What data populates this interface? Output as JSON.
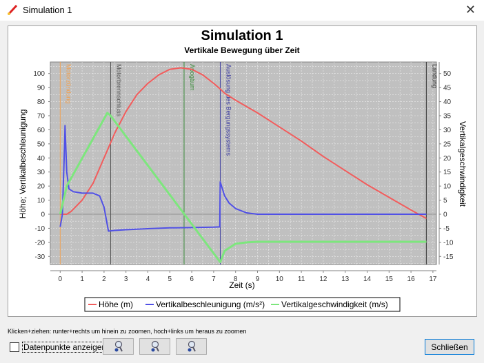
{
  "window": {
    "title": "Simulation 1",
    "close_icon": "close-icon"
  },
  "footer": {
    "hint": "Klicken+ziehen: runter+rechts um hinein zu zoomen, hoch+links um heraus zu zoomen",
    "checkbox_label": "Datenpunkte anzeigen",
    "checkbox_checked": false,
    "zoom_buttons": [
      "zoom-in-icon",
      "zoom-out-icon",
      "zoom-reset-icon"
    ],
    "close_label": "Schließen"
  },
  "chart_data": {
    "type": "line",
    "title": "Simulation 1",
    "subtitle": "Vertikale Bewegung über Zeit",
    "xlabel": "Zeit (s)",
    "ylabel": "Höhe; Vertikalbeschleunigung",
    "y2label": "Vertikalgeschwindigkeit",
    "xlim": [
      -0.5,
      17.5
    ],
    "ylim": [
      -36,
      108
    ],
    "y2lim": [
      -18,
      54
    ],
    "xticks": [
      0,
      1,
      2,
      3,
      4,
      5,
      6,
      7,
      8,
      9,
      10,
      11,
      12,
      13,
      14,
      15,
      16,
      17
    ],
    "yticks": [
      -30,
      -20,
      -10,
      0,
      10,
      20,
      30,
      40,
      50,
      60,
      70,
      80,
      90,
      100
    ],
    "y2ticks": [
      -15,
      -10,
      -5,
      0,
      5,
      10,
      15,
      20,
      25,
      30,
      35,
      40,
      45,
      50
    ],
    "grid": true,
    "legend_position": "bottom",
    "series": [
      {
        "name": "Höhe (m)",
        "color": "#f25c5c",
        "axis": "left",
        "x": [
          0,
          0.3,
          0.5,
          1,
          1.5,
          2,
          2.5,
          3,
          3.5,
          4,
          4.5,
          5,
          5.5,
          6,
          6.5,
          7,
          7.3,
          7.5,
          8,
          9,
          10,
          11,
          12,
          13,
          14,
          15,
          16,
          16.7
        ],
        "y": [
          0,
          0,
          2,
          10,
          22,
          40,
          58,
          73,
          85,
          93,
          99,
          103,
          104,
          103,
          99,
          93,
          89,
          86,
          81,
          72,
          62,
          52,
          41,
          31,
          21,
          12,
          3,
          -3
        ]
      },
      {
        "name": "Vertikalbeschleunigung (m/s²)",
        "color": "#5050e6",
        "axis": "left",
        "x": [
          0,
          0.1,
          0.2,
          0.22,
          0.3,
          0.4,
          0.6,
          1,
          1.5,
          1.8,
          2,
          2.2,
          2.5,
          3,
          4,
          5,
          6,
          7,
          7.28,
          7.3,
          7.5,
          7.7,
          8,
          8.5,
          9,
          16.7
        ],
        "y": [
          -9,
          0,
          50,
          63,
          30,
          18,
          16,
          15,
          15,
          13,
          5,
          -12,
          -11.5,
          -11,
          -10.3,
          -9.7,
          -9.5,
          -9.2,
          -9,
          23,
          13,
          8,
          4,
          1,
          0,
          0
        ]
      },
      {
        "name": "Vertikalgeschwindigkeit (m/s)",
        "color": "#7de67d",
        "axis": "right",
        "x": [
          0,
          0.3,
          2.15,
          2.3,
          7.3,
          7.5,
          8,
          8.5,
          9,
          16.7
        ],
        "y": [
          0,
          10,
          36,
          35,
          -17,
          -13,
          -10.5,
          -10,
          -9.8,
          -9.8
        ]
      }
    ],
    "events": [
      {
        "label": "Motorzündung",
        "t": 0,
        "color": "#f0a050"
      },
      {
        "label": "Motorbrennschluss",
        "t": 2.3,
        "color": "#555555"
      },
      {
        "label": "Apogäum",
        "t": 5.65,
        "color": "#3a8a3a"
      },
      {
        "label": "Auslösung des Bergungssystems",
        "t": 7.3,
        "color": "#3a3aa0"
      },
      {
        "label": "Landung",
        "t": 16.7,
        "color": "#333333"
      }
    ]
  }
}
